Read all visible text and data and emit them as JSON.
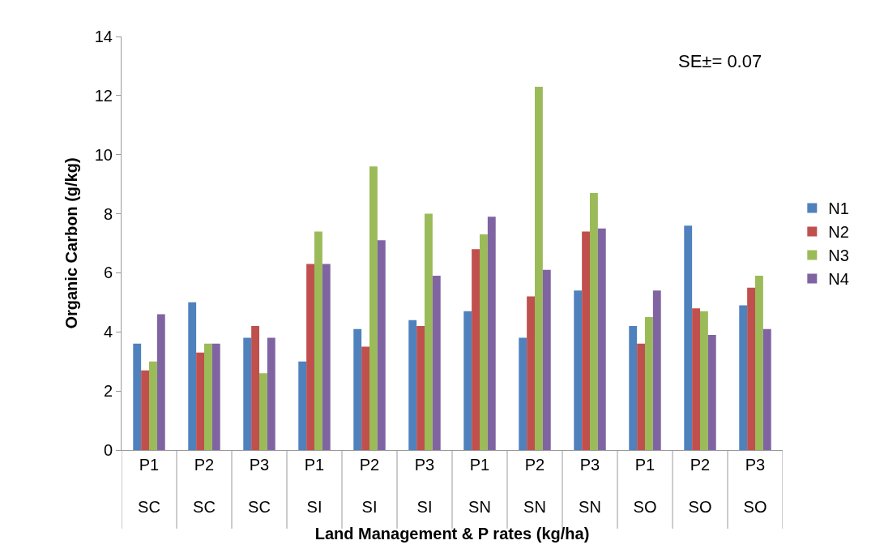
{
  "chart_data": {
    "type": "bar",
    "xlabel": "Land Management & P rates (kg/ha)",
    "ylabel": "Organic Carbon (g/kg)",
    "categories": [
      "P1\nSC",
      "P2\nSC",
      "P3\nSC",
      "P1\nSI",
      "P2\nSI",
      "P3\nSI",
      "P1\nSN",
      "P2\nSN",
      "P3\nSN",
      "P1\nSO",
      "P2\nSO",
      "P3\nSO"
    ],
    "series": [
      {
        "name": "N1",
        "color": "#4f81bd",
        "values": [
          3.6,
          5.0,
          3.8,
          3.0,
          4.1,
          4.4,
          4.7,
          3.8,
          5.4,
          4.2,
          7.6,
          4.9
        ]
      },
      {
        "name": "N2",
        "color": "#c0504d",
        "values": [
          2.7,
          3.3,
          4.2,
          6.3,
          3.5,
          4.2,
          6.8,
          5.2,
          7.4,
          3.6,
          4.8,
          5.5
        ]
      },
      {
        "name": "N3",
        "color": "#9bbb59",
        "values": [
          3.0,
          3.6,
          2.6,
          7.4,
          9.6,
          8.0,
          7.3,
          12.3,
          8.7,
          4.5,
          4.7,
          5.9
        ]
      },
      {
        "name": "N4",
        "color": "#8064a2",
        "values": [
          4.6,
          3.6,
          3.8,
          6.3,
          7.1,
          5.9,
          7.9,
          6.1,
          7.5,
          5.4,
          3.9,
          4.1
        ]
      }
    ],
    "ylim": [
      0,
      14
    ],
    "yticks": [
      0,
      2,
      4,
      6,
      8,
      10,
      12,
      14
    ],
    "grid": false,
    "legend": "right",
    "annotations": [
      "SE±= 0.07"
    ]
  }
}
